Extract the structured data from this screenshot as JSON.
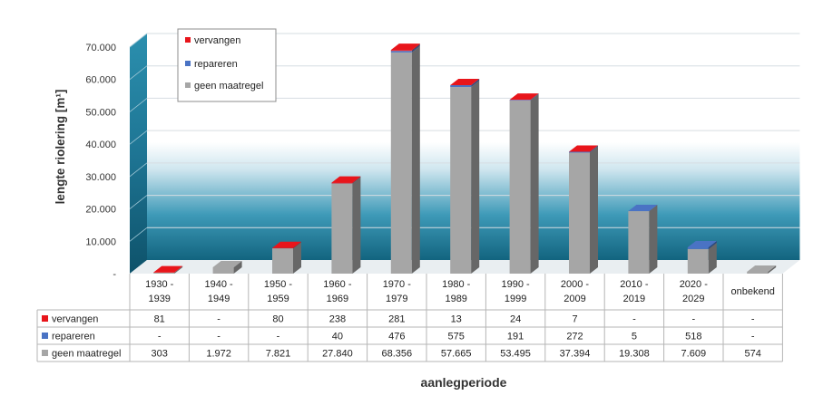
{
  "chart_data": {
    "type": "bar",
    "stacked": true,
    "style": "3d-column",
    "xlabel": "aanlegperiode",
    "ylabel": "lengte riolering [m¹]",
    "ylim": [
      0,
      70000
    ],
    "yticks": [
      "-",
      "10.000",
      "20.000",
      "30.000",
      "40.000",
      "50.000",
      "60.000",
      "70.000"
    ],
    "yticks_values": [
      0,
      10000,
      20000,
      30000,
      40000,
      50000,
      60000,
      70000
    ],
    "grid": true,
    "legend_position": "top-left",
    "categories": [
      "1930 - 1939",
      "1940 - 1949",
      "1950 - 1959",
      "1960 - 1969",
      "1970 - 1979",
      "1980 - 1989",
      "1990 - 1999",
      "2000 - 2009",
      "2010 - 2019",
      "2020 - 2029",
      "onbekend"
    ],
    "series": [
      {
        "name": "vervangen",
        "color": "#e8151b",
        "values": [
          81,
          0,
          80,
          238,
          281,
          13,
          24,
          7,
          0,
          0,
          0
        ],
        "labels": [
          "81",
          "-",
          "80",
          "238",
          "281",
          "13",
          "24",
          "7",
          "-",
          "-",
          "-"
        ]
      },
      {
        "name": "repareren",
        "color": "#4a73c4",
        "values": [
          0,
          0,
          0,
          40,
          476,
          575,
          191,
          272,
          5,
          518,
          0
        ],
        "labels": [
          "-",
          "-",
          "-",
          "40",
          "476",
          "575",
          "191",
          "272",
          "5",
          "518",
          "-"
        ]
      },
      {
        "name": "geen maatregel",
        "color": "#a6a6a6",
        "values": [
          303,
          1972,
          7821,
          27840,
          68356,
          57665,
          53495,
          37394,
          19308,
          7609,
          574
        ],
        "labels": [
          "303",
          "1.972",
          "7.821",
          "27.840",
          "68.356",
          "57.665",
          "53.495",
          "37.394",
          "19.308",
          "7.609",
          "574"
        ]
      }
    ],
    "stack_order_bottom_to_top": [
      "geen maatregel",
      "repareren",
      "vervangen"
    ],
    "legend_order": [
      "vervangen",
      "repareren",
      "geen maatregel"
    ]
  }
}
